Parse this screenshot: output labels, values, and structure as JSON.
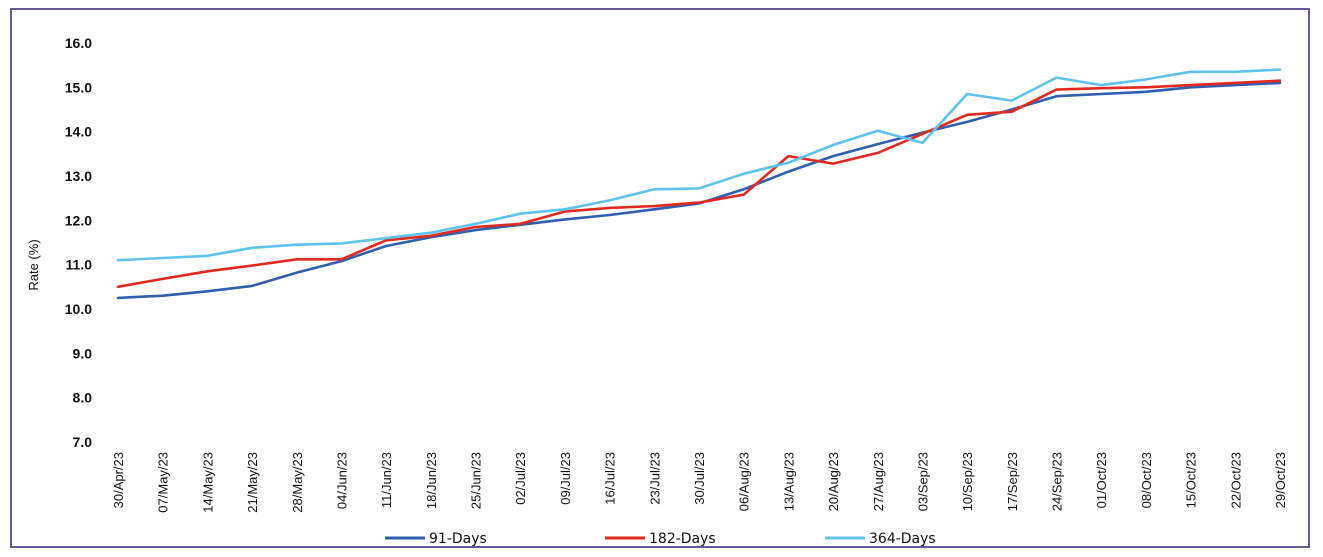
{
  "chart_data": {
    "type": "line",
    "title": "",
    "xlabel": "",
    "ylabel": "Rate (%)",
    "ylim": [
      7.0,
      16.0
    ],
    "yticks": [
      "7.0",
      "8.0",
      "9.0",
      "10.0",
      "11.0",
      "12.0",
      "13.0",
      "14.0",
      "15.0",
      "16.0"
    ],
    "categories": [
      "30/Apr/23",
      "07/May/23",
      "14/May/23",
      "21/May/23",
      "28/May/23",
      "04/Jun/23",
      "11/Jun/23",
      "18/Jun/23",
      "25/Jun/23",
      "02/Jul/23",
      "09/Jul/23",
      "16/Jul/23",
      "23/Jul/23",
      "30/Jul/23",
      "06/Aug/23",
      "13/Aug/23",
      "20/Aug/23",
      "27/Aug/23",
      "03/Sep/23",
      "10/Sep/23",
      "17/Sep/23",
      "24/Sep/23",
      "01/Oct/23",
      "08/Oct/23",
      "15/Oct/23",
      "22/Oct/23",
      "29/Oct/23"
    ],
    "grid": false,
    "legend_position": "bottom",
    "series": [
      {
        "name": "91-Days",
        "color": "#2f5fae",
        "values": [
          10.25,
          10.3,
          10.4,
          10.52,
          10.82,
          11.08,
          11.42,
          11.62,
          11.78,
          11.9,
          12.02,
          12.12,
          12.25,
          12.38,
          12.7,
          13.1,
          13.45,
          13.72,
          13.98,
          14.22,
          14.5,
          14.8,
          14.85,
          14.9,
          15.0,
          15.05,
          15.1
        ]
      },
      {
        "name": "182-Days",
        "color": "#e02a1f",
        "values": [
          10.5,
          10.68,
          10.85,
          10.98,
          11.12,
          11.12,
          11.55,
          11.65,
          11.85,
          11.92,
          12.2,
          12.28,
          12.32,
          12.4,
          12.58,
          13.45,
          13.28,
          13.52,
          13.95,
          14.38,
          14.45,
          14.95,
          14.98,
          15.0,
          15.05,
          15.1,
          15.15
        ]
      },
      {
        "name": "364-Days",
        "color": "#5ec4ec",
        "values": [
          11.1,
          11.15,
          11.2,
          11.38,
          11.45,
          11.48,
          11.6,
          11.72,
          11.92,
          12.15,
          12.25,
          12.45,
          12.7,
          12.72,
          13.05,
          13.3,
          13.7,
          14.02,
          13.75,
          14.85,
          14.7,
          15.22,
          15.05,
          15.18,
          15.35,
          15.35,
          15.4
        ]
      }
    ]
  }
}
